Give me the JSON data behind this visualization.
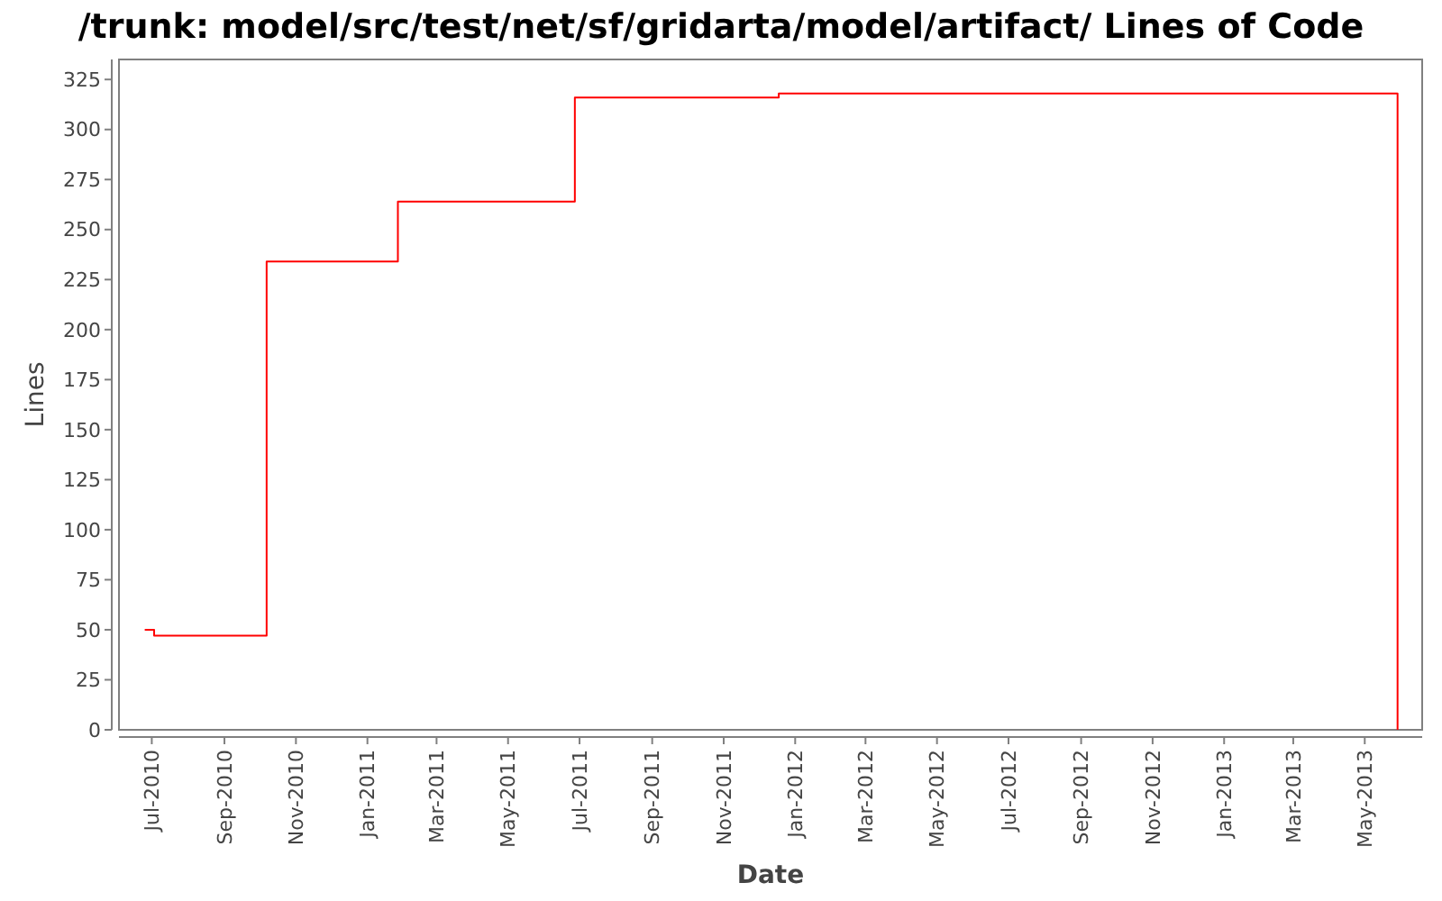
{
  "chart_data": {
    "type": "step",
    "title": "/trunk: model/src/test/net/sf/gridarta/model/artifact/ Lines of Code",
    "xlabel": "Date",
    "ylabel": "Lines",
    "x": [
      "2010-06-25",
      "2010-07-03",
      "2010-10-07",
      "2011-01-27",
      "2011-06-27",
      "2011-12-18",
      "2013-05-29"
    ],
    "series": [
      {
        "color": "#ff0000",
        "values": [
          50,
          47,
          234,
          264,
          316,
          318,
          0
        ]
      }
    ],
    "xlim": [
      "2010-06-03",
      "2013-06-19"
    ],
    "xticks": [
      {
        "value": "2010-07-01",
        "label": "Jul-2010"
      },
      {
        "value": "2010-09-01",
        "label": "Sep-2010"
      },
      {
        "value": "2010-11-01",
        "label": "Nov-2010"
      },
      {
        "value": "2011-01-01",
        "label": "Jan-2011"
      },
      {
        "value": "2011-03-01",
        "label": "Mar-2011"
      },
      {
        "value": "2011-05-01",
        "label": "May-2011"
      },
      {
        "value": "2011-07-01",
        "label": "Jul-2011"
      },
      {
        "value": "2011-09-01",
        "label": "Sep-2011"
      },
      {
        "value": "2011-11-01",
        "label": "Nov-2011"
      },
      {
        "value": "2012-01-01",
        "label": "Jan-2012"
      },
      {
        "value": "2012-03-01",
        "label": "Mar-2012"
      },
      {
        "value": "2012-05-01",
        "label": "May-2012"
      },
      {
        "value": "2012-07-01",
        "label": "Jul-2012"
      },
      {
        "value": "2012-09-01",
        "label": "Sep-2012"
      },
      {
        "value": "2012-11-01",
        "label": "Nov-2012"
      },
      {
        "value": "2013-01-01",
        "label": "Jan-2013"
      },
      {
        "value": "2013-03-01",
        "label": "Mar-2013"
      },
      {
        "value": "2013-05-01",
        "label": "May-2013"
      }
    ],
    "ylim": [
      0,
      335
    ],
    "yticks": [
      0,
      25,
      50,
      75,
      100,
      125,
      150,
      175,
      200,
      225,
      250,
      275,
      300,
      325
    ],
    "grid": false
  }
}
